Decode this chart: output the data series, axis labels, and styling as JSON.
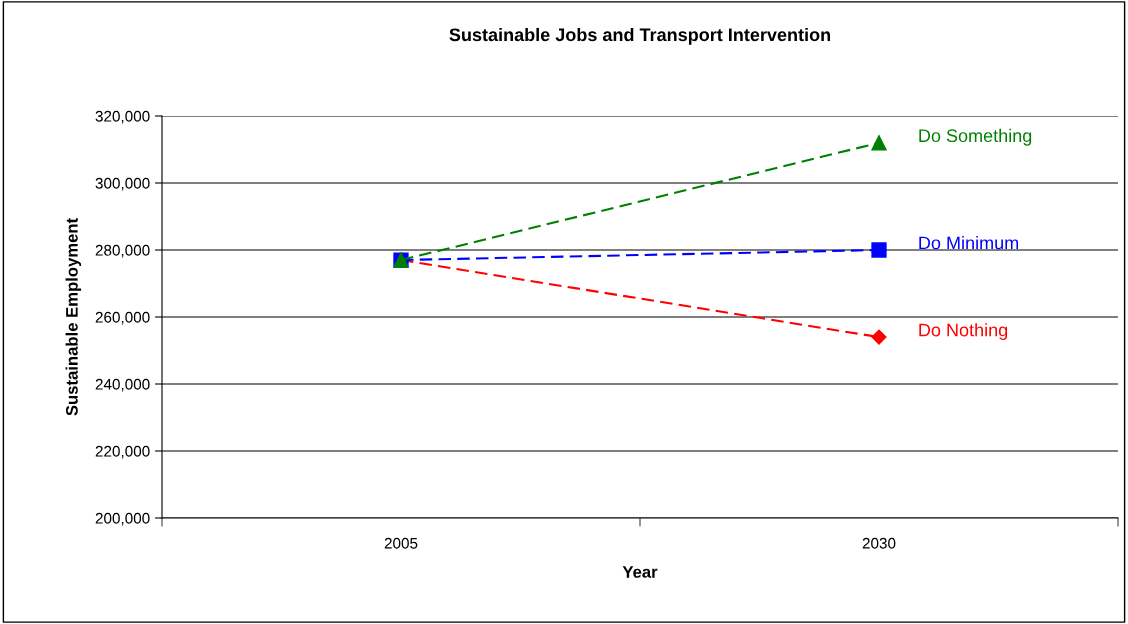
{
  "chart_data": {
    "type": "line",
    "title": "Sustainable Jobs and Transport Intervention",
    "xlabel": "Year",
    "ylabel": "Sustainable Employment",
    "categories": [
      "2005",
      "2030"
    ],
    "series": [
      {
        "name": "Do Something",
        "color": "#008000",
        "values": [
          277000,
          312000
        ],
        "marker": "triangle",
        "line_style": "dashed"
      },
      {
        "name": "Do Minimum",
        "color": "#0000ff",
        "values": [
          277000,
          280000
        ],
        "marker": "square",
        "line_style": "dashed"
      },
      {
        "name": "Do Nothing",
        "color": "#ff0000",
        "values": [
          277000,
          254000
        ],
        "marker": "diamond",
        "line_style": "dashed"
      }
    ],
    "ylim": [
      200000,
      320000
    ],
    "yticks": [
      {
        "value": 200000,
        "label": "200,000"
      },
      {
        "value": 220000,
        "label": "220,000"
      },
      {
        "value": 240000,
        "label": "240,000"
      },
      {
        "value": 260000,
        "label": "260,000"
      },
      {
        "value": 280000,
        "label": "280,000"
      },
      {
        "value": 300000,
        "label": "300,000"
      },
      {
        "value": 320000,
        "label": "320,000"
      }
    ],
    "grid": "y",
    "legend": false
  }
}
